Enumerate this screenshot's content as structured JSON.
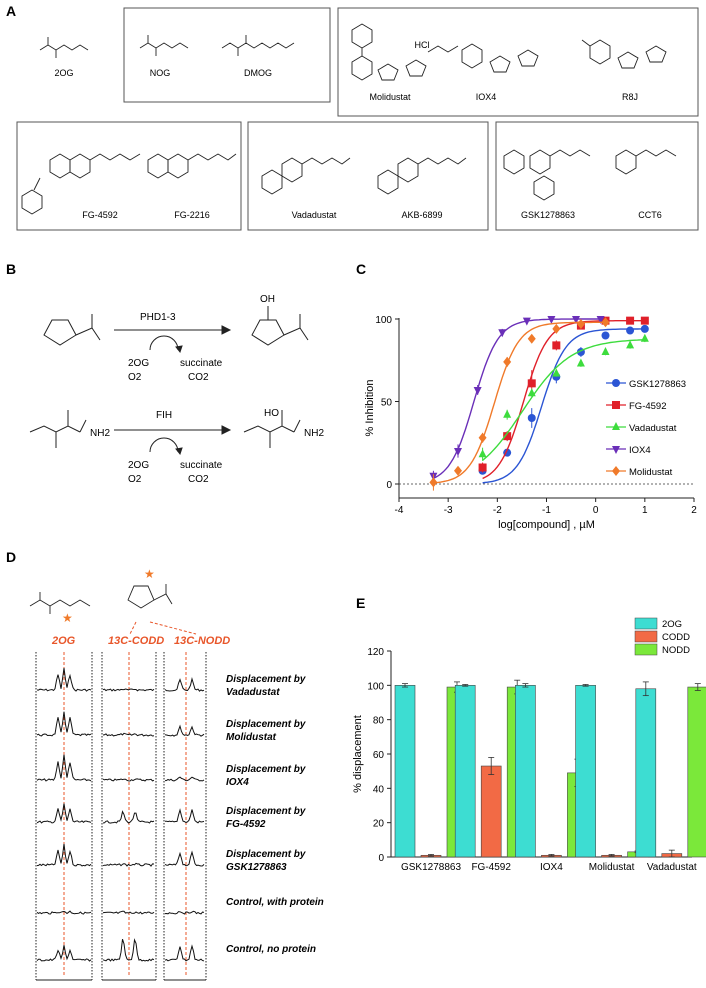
{
  "panels": {
    "a": "A",
    "b": "B",
    "c": "C",
    "d": "D",
    "e": "E"
  },
  "panel_a": {
    "compounds": {
      "c2og": "2OG",
      "nog": "NOG",
      "dmog": "DMOG",
      "molidustat": "Molidustat",
      "hcl": "HCl",
      "iox4": "IOX4",
      "r8j": "R8J",
      "fg4592": "FG-4592",
      "fg2216": "FG-2216",
      "vadadustat": "Vadadustat",
      "akb6899": "AKB-6899",
      "gsk": "GSK1278863",
      "cct6": "CCT6"
    }
  },
  "panel_b": {
    "enzyme1": "PHD1-3",
    "enzyme2": "FIH",
    "cofactor": "2OG",
    "o2": "O2",
    "succinate": "succinate",
    "co2": "CO2",
    "oh": "OH",
    "ho": "HO",
    "nh2": "NH2"
  },
  "chart_data": [
    {
      "type": "scatter",
      "title": "",
      "xlabel": "log[compound] , µM",
      "ylabel": "% Inhibition",
      "xlim": [
        -4,
        2
      ],
      "ylim": [
        0,
        100
      ],
      "xticks": [
        "-4",
        "-3",
        "-2",
        "-1",
        "0",
        "1",
        "2"
      ],
      "yticks": [
        "0",
        "50",
        "100"
      ],
      "legend_position": "right",
      "series": [
        {
          "name": "GSK1278863",
          "color": "#2B55D4",
          "marker": "circle",
          "x": [
            -2.3,
            -1.8,
            -1.3,
            -0.8,
            -0.3,
            0.2,
            0.7,
            1.0
          ],
          "y": [
            8,
            19,
            40,
            65,
            80,
            90,
            93,
            94
          ],
          "err": [
            2,
            2,
            6,
            4,
            3,
            2,
            2,
            2
          ]
        },
        {
          "name": "FG-4592",
          "color": "#E0202A",
          "marker": "square",
          "x": [
            -2.3,
            -1.8,
            -1.3,
            -0.8,
            -0.3,
            0.2,
            0.7,
            1.0
          ],
          "y": [
            10,
            29,
            61,
            84,
            96,
            99,
            99,
            99
          ],
          "err": [
            3,
            3,
            8,
            3,
            2,
            1,
            1,
            1
          ]
        },
        {
          "name": "Vadadustat",
          "color": "#3DDC3D",
          "marker": "triangle-up",
          "x": [
            -2.3,
            -1.8,
            -1.3,
            -0.8,
            -0.3,
            0.2,
            0.7,
            1.0
          ],
          "y": [
            18,
            42,
            55,
            67,
            73,
            80,
            84,
            88
          ],
          "err": [
            4,
            3,
            2,
            2,
            2,
            2,
            2,
            2
          ]
        },
        {
          "name": "IOX4",
          "color": "#6A2FB8",
          "marker": "triangle-down",
          "x": [
            -3.3,
            -2.8,
            -2.4,
            -1.9,
            -1.4,
            -0.9,
            -0.4,
            0.1
          ],
          "y": [
            5,
            20,
            57,
            92,
            99,
            100,
            100,
            100
          ],
          "err": [
            3,
            4,
            3,
            2,
            1,
            1,
            1,
            1
          ]
        },
        {
          "name": "Molidustat",
          "color": "#F07A2A",
          "marker": "diamond",
          "x": [
            -3.3,
            -2.8,
            -2.3,
            -1.8,
            -1.3,
            -0.8,
            -0.3,
            0.2
          ],
          "y": [
            1,
            8,
            28,
            74,
            88,
            94,
            97,
            98
          ],
          "err": [
            5,
            2,
            3,
            3,
            2,
            2,
            1,
            1
          ]
        }
      ]
    },
    {
      "type": "bar",
      "title": "",
      "xlabel": "",
      "ylabel": "% displacement",
      "ylim": [
        0,
        120
      ],
      "yticks": [
        "0",
        "20",
        "40",
        "60",
        "80",
        "100",
        "120"
      ],
      "legend_position": "top-right",
      "categories": [
        "GSK1278863",
        "FG-4592",
        "IOX4",
        "Molidustat",
        "Vadadustat"
      ],
      "series": [
        {
          "name": "2OG",
          "color": "#3DDDD2",
          "values": [
            100,
            100,
            100,
            100,
            98
          ],
          "err": [
            1,
            0.5,
            1,
            0.5,
            4
          ]
        },
        {
          "name": "CODD",
          "color": "#F26A45",
          "values": [
            1,
            53,
            1,
            1,
            2
          ],
          "err": [
            0.5,
            5,
            0.5,
            0.5,
            2
          ]
        },
        {
          "name": "NODD",
          "color": "#7BE83A",
          "values": [
            99,
            99,
            49,
            3,
            99
          ],
          "err": [
            3,
            4,
            8,
            0.5,
            2
          ]
        }
      ]
    }
  ],
  "panel_d": {
    "labels": {
      "og": "2OG",
      "codd": "13C-CODD",
      "nodd": "13C-NODD",
      "star": "★"
    },
    "rows": [
      {
        "l1": "Displacement by",
        "l2": "Vadadustat"
      },
      {
        "l1": "Displacement by",
        "l2": "Molidustat"
      },
      {
        "l1": "Displacement by",
        "l2": "IOX4"
      },
      {
        "l1": "Displacement by",
        "l2": "FG-4592"
      },
      {
        "l1": "Displacement by",
        "l2": "GSK1278863"
      },
      {
        "l1": "Control, with protein",
        "l2": ""
      },
      {
        "l1": "Control, no protein",
        "l2": ""
      }
    ]
  }
}
